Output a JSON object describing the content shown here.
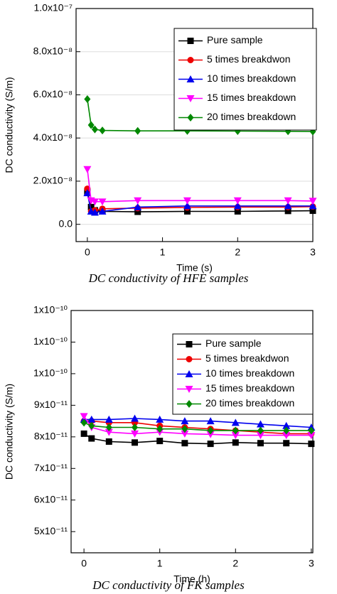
{
  "chart_data": [
    {
      "type": "line",
      "caption": "DC conductivity of HFE samples",
      "xlabel": "Time (s)",
      "ylabel": "DC conductivity (S/m)",
      "x": [
        0,
        0.05,
        0.1,
        0.2,
        0.67,
        1.33,
        2,
        2.67,
        3
      ],
      "xlim": [
        -0.15,
        3
      ],
      "xticks": [
        0,
        1,
        2,
        3
      ],
      "ylim": [
        -8e-09,
        1e-07
      ],
      "yticks": [
        {
          "value": 0,
          "label": "0.0"
        },
        {
          "value": 2e-08,
          "label": "2.0x10⁻⁸"
        },
        {
          "value": 4e-08,
          "label": "4.0x10⁻⁸"
        },
        {
          "value": 6e-08,
          "label": "6.0x10⁻⁸"
        },
        {
          "value": 8e-08,
          "label": "8.0x10⁻⁸"
        },
        {
          "value": 1e-07,
          "label": "1.0x10⁻⁷"
        }
      ],
      "grid": true,
      "legend": "upper right",
      "series": [
        {
          "name": "Pure sample",
          "color": "#000000",
          "marker": "square",
          "values": [
            1.5e-08,
            8e-09,
            6.5e-09,
            6e-09,
            5.8e-09,
            6e-09,
            6e-09,
            6.2e-09,
            6.3e-09
          ]
        },
        {
          "name": "5 times breakdwon",
          "color": "#ee0000",
          "marker": "circle",
          "values": [
            1.65e-08,
            6e-09,
            6.5e-09,
            7.2e-09,
            7.5e-09,
            7.8e-09,
            8e-09,
            8e-09,
            8.2e-09
          ]
        },
        {
          "name": "10 times breakdown",
          "color": "#0000ee",
          "marker": "triangle-up",
          "values": [
            1.45e-08,
            6e-09,
            5.5e-09,
            6e-09,
            8e-09,
            8.5e-09,
            8.5e-09,
            8.5e-09,
            8.5e-09
          ]
        },
        {
          "name": "15 times breakdown",
          "color": "#ff00ff",
          "marker": "triangle-down",
          "values": [
            2.55e-08,
            1.1e-08,
            1.05e-08,
            1.05e-08,
            1.1e-08,
            1.1e-08,
            1.1e-08,
            1.1e-08,
            1.08e-08
          ]
        },
        {
          "name": "20 times breakdown",
          "color": "#008800",
          "marker": "diamond",
          "values": [
            5.8e-08,
            4.6e-08,
            4.4e-08,
            4.35e-08,
            4.33e-08,
            4.33e-08,
            4.32e-08,
            4.31e-08,
            4.3e-08
          ]
        }
      ]
    },
    {
      "type": "line",
      "caption": "DC conductivity of FK samples",
      "xlabel": "Time (h)",
      "ylabel": "DC conductivity (S/m)",
      "x": [
        0,
        0.1,
        0.33,
        0.67,
        1,
        1.33,
        1.67,
        2,
        2.33,
        2.67,
        3
      ],
      "xlim": [
        -0.17,
        3.02
      ],
      "xticks": [
        0,
        1,
        2,
        3
      ],
      "ylim": [
        4.33e-11,
        1.2e-10
      ],
      "yticks": [
        {
          "value": 5e-11,
          "label": "5x10⁻¹¹"
        },
        {
          "value": 6e-11,
          "label": "6x10⁻¹¹"
        },
        {
          "value": 7e-11,
          "label": "7x10⁻¹¹"
        },
        {
          "value": 8e-11,
          "label": "8x10⁻¹¹"
        },
        {
          "value": 9e-11,
          "label": "9x10⁻¹¹"
        },
        {
          "value": 1e-10,
          "label": "1x10⁻¹⁰"
        },
        {
          "value": 1.1e-10,
          "label": "1x10⁻¹⁰"
        },
        {
          "value": 1.2e-10,
          "label": "1x10⁻¹⁰"
        }
      ],
      "grid": false,
      "legend": "upper right",
      "series": [
        {
          "name": "Pure sample",
          "color": "#000000",
          "marker": "square",
          "values": [
            8.1e-11,
            7.95e-11,
            7.85e-11,
            7.82e-11,
            7.87e-11,
            7.8e-11,
            7.78e-11,
            7.82e-11,
            7.8e-11,
            7.8e-11,
            7.78e-11
          ]
        },
        {
          "name": "5 times breakdwon",
          "color": "#ee0000",
          "marker": "circle",
          "values": [
            8.5e-11,
            8.5e-11,
            8.45e-11,
            8.45e-11,
            8.35e-11,
            8.3e-11,
            8.25e-11,
            8.2e-11,
            8.15e-11,
            8.1e-11,
            8.1e-11
          ]
        },
        {
          "name": "10 times breakdown",
          "color": "#0000ee",
          "marker": "triangle-up",
          "values": [
            8.55e-11,
            8.55e-11,
            8.55e-11,
            8.58e-11,
            8.55e-11,
            8.5e-11,
            8.5e-11,
            8.45e-11,
            8.4e-11,
            8.35e-11,
            8.3e-11
          ]
        },
        {
          "name": "15 times breakdown",
          "color": "#ff00ff",
          "marker": "triangle-down",
          "values": [
            8.65e-11,
            8.3e-11,
            8.15e-11,
            8.1e-11,
            8.15e-11,
            8.1e-11,
            8.08e-11,
            8.05e-11,
            8.05e-11,
            8.05e-11,
            8.05e-11
          ]
        },
        {
          "name": "20 times breakdown",
          "color": "#008800",
          "marker": "diamond",
          "values": [
            8.45e-11,
            8.35e-11,
            8.3e-11,
            8.3e-11,
            8.25e-11,
            8.25e-11,
            8.2e-11,
            8.2e-11,
            8.2e-11,
            8.2e-11,
            8.2e-11
          ]
        }
      ]
    }
  ]
}
